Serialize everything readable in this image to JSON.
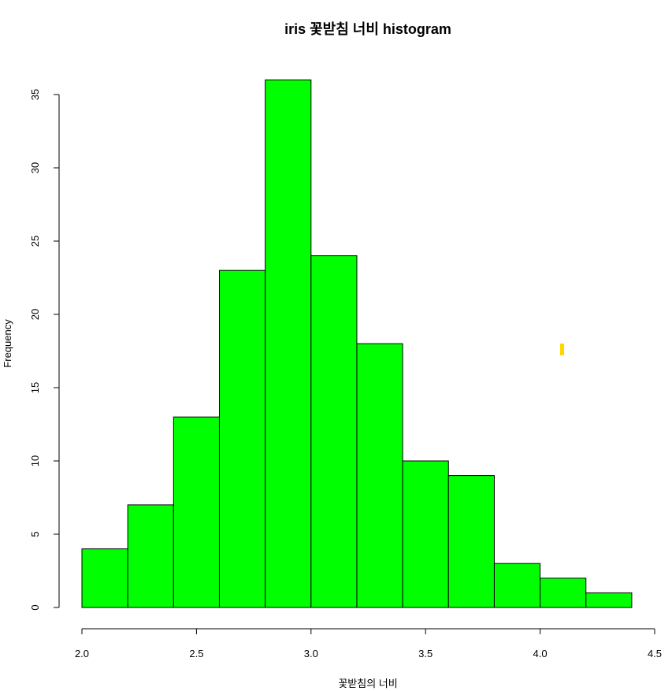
{
  "chart_data": {
    "type": "bar",
    "title": "iris 꽃받침 너비 histogram",
    "xlabel": "꽃받침의 너비",
    "ylabel": "Frequency",
    "bins": [
      {
        "start": 2.0,
        "end": 2.2,
        "count": 4
      },
      {
        "start": 2.2,
        "end": 2.4,
        "count": 7
      },
      {
        "start": 2.4,
        "end": 2.6,
        "count": 13
      },
      {
        "start": 2.6,
        "end": 2.8,
        "count": 23
      },
      {
        "start": 2.8,
        "end": 3.0,
        "count": 36
      },
      {
        "start": 3.0,
        "end": 3.2,
        "count": 24
      },
      {
        "start": 3.2,
        "end": 3.4,
        "count": 18
      },
      {
        "start": 3.4,
        "end": 3.6,
        "count": 10
      },
      {
        "start": 3.6,
        "end": 3.8,
        "count": 9
      },
      {
        "start": 3.8,
        "end": 4.0,
        "count": 3
      },
      {
        "start": 4.0,
        "end": 4.2,
        "count": 2
      },
      {
        "start": 4.2,
        "end": 4.4,
        "count": 1
      }
    ],
    "xticks": [
      "2.0",
      "2.5",
      "3.0",
      "3.5",
      "4.0",
      "4.5"
    ],
    "yticks": [
      "0",
      "5",
      "10",
      "15",
      "20",
      "25",
      "30",
      "35"
    ],
    "xlim": [
      2.0,
      4.5
    ],
    "ylim": [
      0,
      35
    ],
    "bar_color": "#00ff00",
    "bar_border_color": "#000000",
    "grid": false,
    "legend": "none"
  },
  "annotations": {
    "marker_color": "#ffd700"
  }
}
